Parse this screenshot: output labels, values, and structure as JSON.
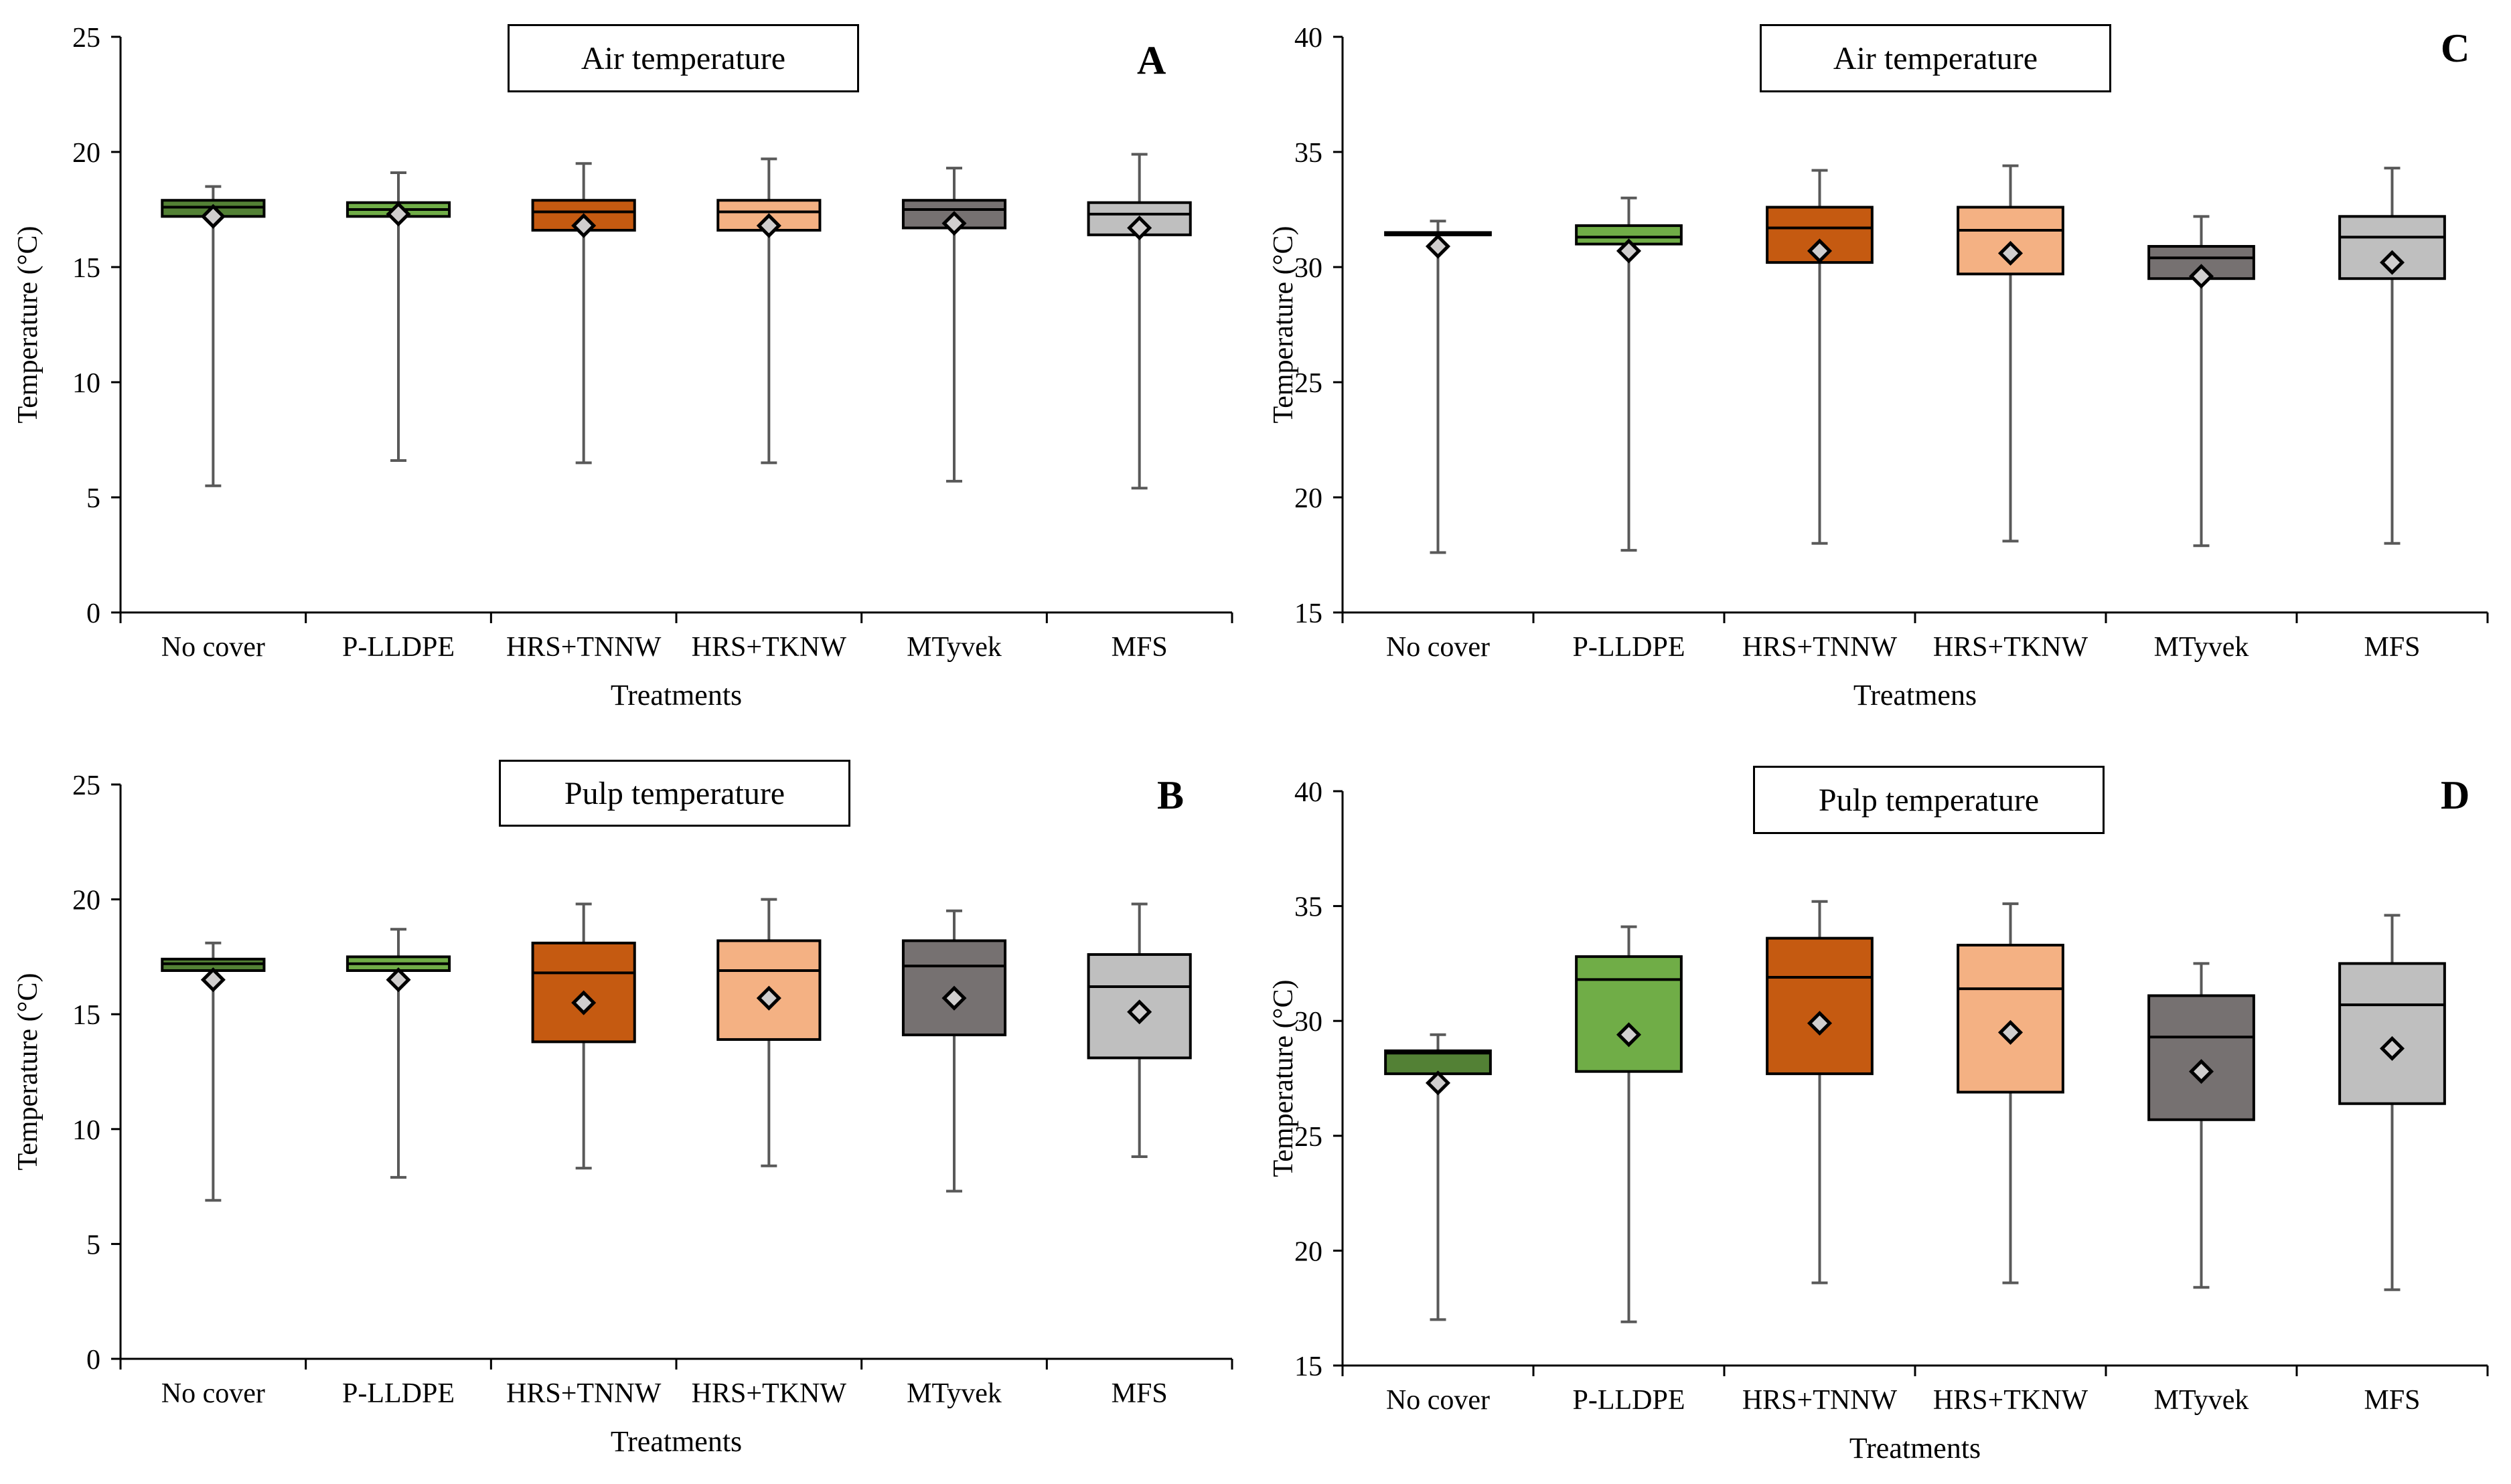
{
  "chart_data": [
    {
      "id": "A",
      "type": "box",
      "title": "Air temperature",
      "panel_label": "A",
      "xlabel": "Treatments",
      "ylabel": "Temperature (°C)",
      "ylim": [
        0,
        25
      ],
      "yticks": [
        0,
        5,
        10,
        15,
        20,
        25
      ],
      "categories": [
        "No cover",
        "P-LLDPE",
        "HRS+TNNW",
        "HRS+TKNW",
        "MTyvek",
        "MFS"
      ],
      "boxes": [
        {
          "min": 5.5,
          "q1": 17.2,
          "median": 17.6,
          "q3": 17.9,
          "max": 18.5,
          "mean": 17.2
        },
        {
          "min": 6.6,
          "q1": 17.2,
          "median": 17.5,
          "q3": 17.8,
          "max": 19.1,
          "mean": 17.3
        },
        {
          "min": 6.5,
          "q1": 16.6,
          "median": 17.4,
          "q3": 17.9,
          "max": 19.5,
          "mean": 16.8
        },
        {
          "min": 6.5,
          "q1": 16.6,
          "median": 17.4,
          "q3": 17.9,
          "max": 19.7,
          "mean": 16.8
        },
        {
          "min": 5.7,
          "q1": 16.7,
          "median": 17.5,
          "q3": 17.9,
          "max": 19.3,
          "mean": 16.9
        },
        {
          "min": 5.4,
          "q1": 16.4,
          "median": 17.3,
          "q3": 17.8,
          "max": 19.9,
          "mean": 16.7
        }
      ]
    },
    {
      "id": "B",
      "type": "box",
      "title": "Pulp temperature",
      "panel_label": "B",
      "xlabel": "Treatments",
      "ylabel": "Temperature (°C)",
      "ylim": [
        0,
        25
      ],
      "yticks": [
        0,
        5,
        10,
        15,
        20,
        25
      ],
      "categories": [
        "No cover",
        "P-LLDPE",
        "HRS+TNNW",
        "HRS+TKNW",
        "MTyvek",
        "MFS"
      ],
      "boxes": [
        {
          "min": 6.9,
          "q1": 16.9,
          "median": 17.2,
          "q3": 17.4,
          "max": 18.1,
          "mean": 16.5
        },
        {
          "min": 7.9,
          "q1": 16.9,
          "median": 17.2,
          "q3": 17.5,
          "max": 18.7,
          "mean": 16.5
        },
        {
          "min": 8.3,
          "q1": 13.8,
          "median": 16.8,
          "q3": 18.1,
          "max": 19.8,
          "mean": 15.5
        },
        {
          "min": 8.4,
          "q1": 13.9,
          "median": 16.9,
          "q3": 18.2,
          "max": 20.0,
          "mean": 15.7
        },
        {
          "min": 7.3,
          "q1": 14.1,
          "median": 17.1,
          "q3": 18.2,
          "max": 19.5,
          "mean": 15.7
        },
        {
          "min": 8.8,
          "q1": 13.1,
          "median": 16.2,
          "q3": 17.6,
          "max": 19.8,
          "mean": 15.1
        }
      ]
    },
    {
      "id": "C",
      "type": "box",
      "title": "Air temperature",
      "panel_label": "C",
      "xlabel": "Treatmens",
      "ylabel": "Temperature (°C)",
      "ylim": [
        15,
        40
      ],
      "yticks": [
        15,
        20,
        25,
        30,
        35,
        40
      ],
      "categories": [
        "No cover",
        "P-LLDPE",
        "HRS+TNNW",
        "HRS+TKNW",
        "MTyvek",
        "MFS"
      ],
      "boxes": [
        {
          "min": 17.6,
          "q1": 31.4,
          "median": 31.4,
          "q3": 31.5,
          "max": 32.0,
          "mean": 30.9
        },
        {
          "min": 17.7,
          "q1": 31.0,
          "median": 31.3,
          "q3": 31.8,
          "max": 33.0,
          "mean": 30.7
        },
        {
          "min": 18.0,
          "q1": 30.2,
          "median": 31.7,
          "q3": 32.6,
          "max": 34.2,
          "mean": 30.7
        },
        {
          "min": 18.1,
          "q1": 29.7,
          "median": 31.6,
          "q3": 32.6,
          "max": 34.4,
          "mean": 30.6
        },
        {
          "min": 17.9,
          "q1": 29.5,
          "median": 30.4,
          "q3": 30.9,
          "max": 32.2,
          "mean": 29.6
        },
        {
          "min": 18.0,
          "q1": 29.5,
          "median": 31.3,
          "q3": 32.2,
          "max": 34.3,
          "mean": 30.2
        }
      ]
    },
    {
      "id": "D",
      "type": "box",
      "title": "Pulp temperature",
      "panel_label": "D",
      "xlabel": "Treatments",
      "ylabel": "Temperature (°C)",
      "ylim": [
        15,
        40
      ],
      "yticks": [
        15,
        20,
        25,
        30,
        35,
        40
      ],
      "categories": [
        "No cover",
        "P-LLDPE",
        "HRS+TNNW",
        "HRS+TKNW",
        "MTyvek",
        "MFS"
      ],
      "boxes": [
        {
          "min": 17.0,
          "q1": 27.7,
          "median": 28.6,
          "q3": 28.7,
          "max": 29.4,
          "mean": 27.3
        },
        {
          "min": 16.9,
          "q1": 27.8,
          "median": 31.8,
          "q3": 32.8,
          "max": 34.1,
          "mean": 29.4
        },
        {
          "min": 18.6,
          "q1": 27.7,
          "median": 31.9,
          "q3": 33.6,
          "max": 35.2,
          "mean": 29.9
        },
        {
          "min": 18.6,
          "q1": 26.9,
          "median": 31.4,
          "q3": 33.3,
          "max": 35.1,
          "mean": 29.5
        },
        {
          "min": 18.4,
          "q1": 25.7,
          "median": 29.3,
          "q3": 31.1,
          "max": 32.5,
          "mean": 27.8
        },
        {
          "min": 18.3,
          "q1": 26.4,
          "median": 30.7,
          "q3": 32.5,
          "max": 34.6,
          "mean": 28.8
        }
      ]
    }
  ],
  "colors": {
    "box_fills": [
      "#538135",
      "#70ad47",
      "#c55a11",
      "#f4b183",
      "#767171",
      "#bfbfbf"
    ],
    "axis": "#000000",
    "whisker": "#595959",
    "mean_marker_fill": "#d0cece",
    "mean_marker_stroke": "#000000"
  },
  "icons": {
    "mean_marker": "diamond-marker"
  }
}
